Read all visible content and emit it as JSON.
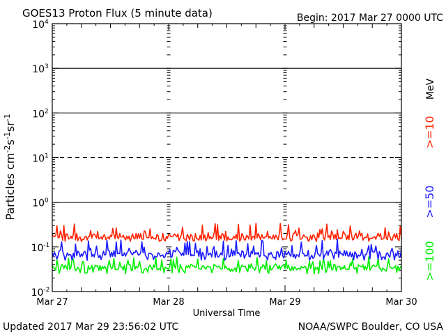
{
  "header": {
    "title": "GOES13 Proton Flux (5 minute data)",
    "begin": "Begin: 2017 Mar 27 0000 UTC"
  },
  "footer": {
    "updated": "Updated 2017 Mar 29 23:56:02 UTC",
    "credit": "NOAA/SWPC Boulder, CO USA"
  },
  "chart_data": {
    "type": "line",
    "title": "GOES13 Proton Flux (5 minute data)",
    "xlabel": "Universal Time",
    "ylabel": "Particles cm⁻²s⁻¹sr⁻¹",
    "y_scale": "log",
    "ylim": [
      0.01,
      10000
    ],
    "y_ticks": [
      {
        "value": 0.01,
        "base": "10",
        "exp": "-2"
      },
      {
        "value": 0.1,
        "base": "10",
        "exp": "-1"
      },
      {
        "value": 1,
        "base": "10",
        "exp": "0"
      },
      {
        "value": 10,
        "base": "10",
        "exp": "1"
      },
      {
        "value": 100,
        "base": "10",
        "exp": "2"
      },
      {
        "value": 1000,
        "base": "10",
        "exp": "3"
      },
      {
        "value": 10000,
        "base": "10",
        "exp": "4"
      }
    ],
    "x_ticks": [
      "Mar 27",
      "Mar 28",
      "Mar 29",
      "Mar 30"
    ],
    "xlim": [
      "2017-03-27",
      "2017-03-30"
    ],
    "reference_lines": [
      {
        "value": 10,
        "style": "dashed"
      },
      {
        "value": 1,
        "style": "solid"
      },
      {
        "value": 100,
        "style": "solid"
      },
      {
        "value": 1000,
        "style": "solid"
      }
    ],
    "unit_label": "MeV",
    "series": [
      {
        "name": ">=10",
        "color": "#ff2200",
        "baseline": 0.17,
        "range": [
          0.13,
          0.36
        ]
      },
      {
        "name": ">=50",
        "color": "#1a1aff",
        "baseline": 0.07,
        "range": [
          0.05,
          0.15
        ]
      },
      {
        "name": ">=100",
        "color": "#00ee00",
        "baseline": 0.035,
        "range": [
          0.025,
          0.06
        ]
      }
    ]
  }
}
